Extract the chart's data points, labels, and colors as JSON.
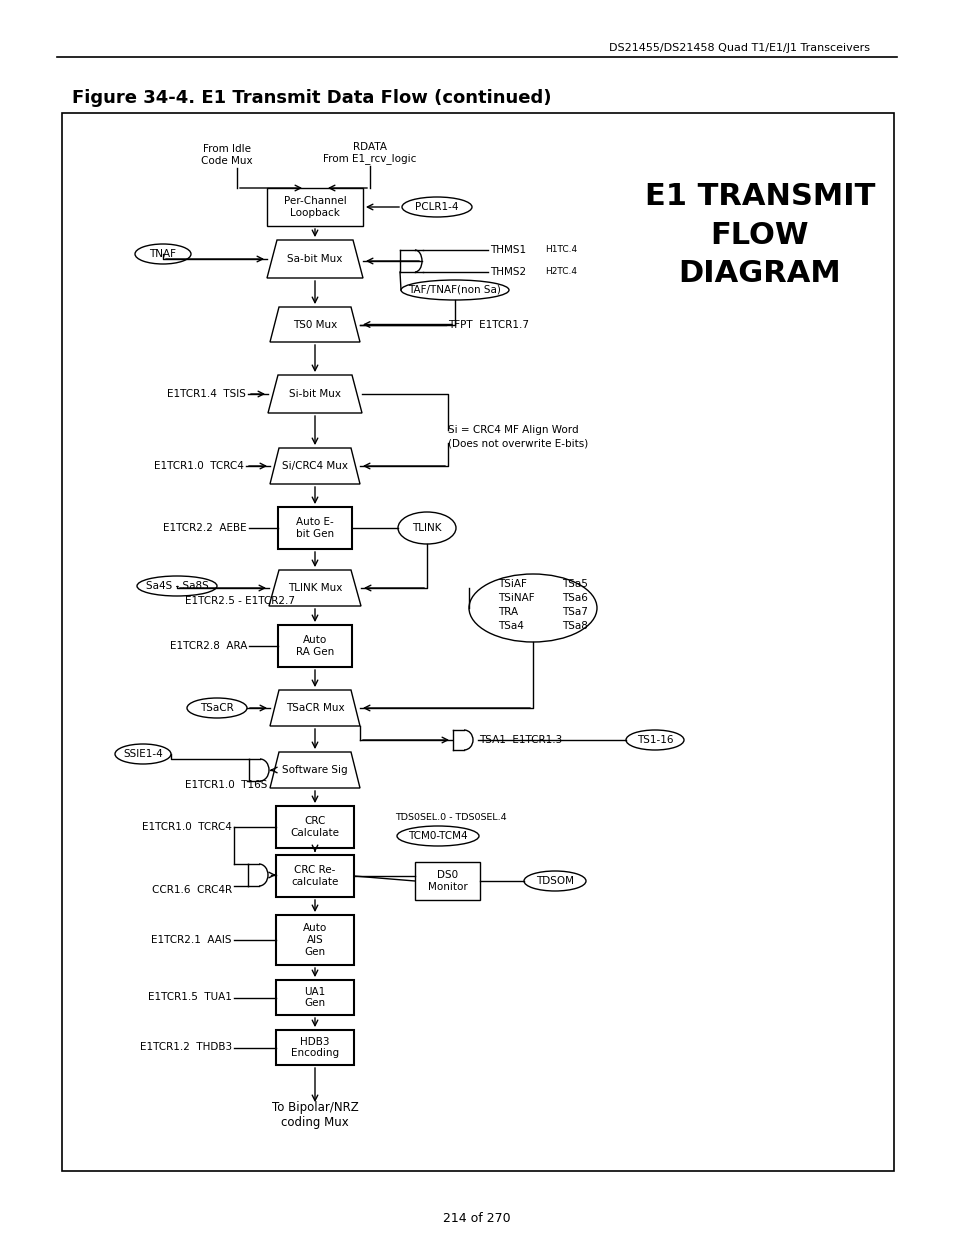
{
  "title": "Figure 34-4. E1 Transmit Data Flow (continued)",
  "header_text": "DS21455/DS21458 Quad T1/E1/J1 Transceivers",
  "big_title": "E1 TRANSMIT\nFLOW\nDIAGRAM",
  "footer": "214 of 270",
  "bg_color": "#ffffff"
}
